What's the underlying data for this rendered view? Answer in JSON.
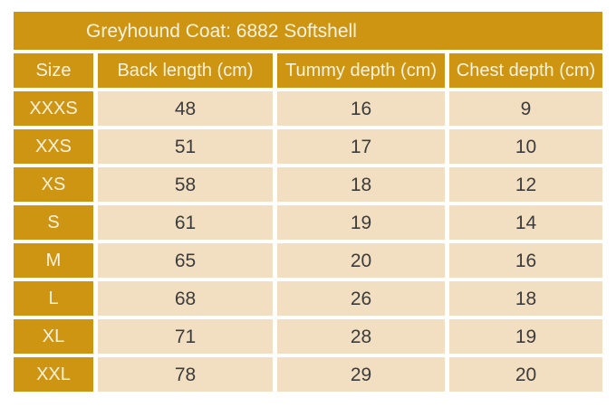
{
  "colors": {
    "gold": "#CE9512",
    "beige": "#F2DFC1",
    "cream_text": "#F9F2DF",
    "dark_text": "#3C3C3C",
    "background": "#FFFFFF"
  },
  "chart_data": {
    "type": "table",
    "title": "Greyhound Coat: 6882 Softshell",
    "columns": [
      "Size",
      "Back length (cm)",
      "Tummy depth (cm)",
      "Chest depth (cm)"
    ],
    "rows": [
      [
        "XXXS",
        48,
        16,
        9
      ],
      [
        "XXS",
        51,
        17,
        10
      ],
      [
        "XS",
        58,
        18,
        12
      ],
      [
        "S",
        61,
        19,
        14
      ],
      [
        "M",
        65,
        20,
        16
      ],
      [
        "L",
        68,
        26,
        18
      ],
      [
        "XL",
        71,
        28,
        19
      ],
      [
        "XXL",
        78,
        29,
        20
      ]
    ],
    "layout": {
      "header_style": "gold band, cream text",
      "size_column_style": "gold cells, cream text",
      "value_cell_style": "beige cells, dark text",
      "grid": "white gutters between all cells"
    }
  }
}
